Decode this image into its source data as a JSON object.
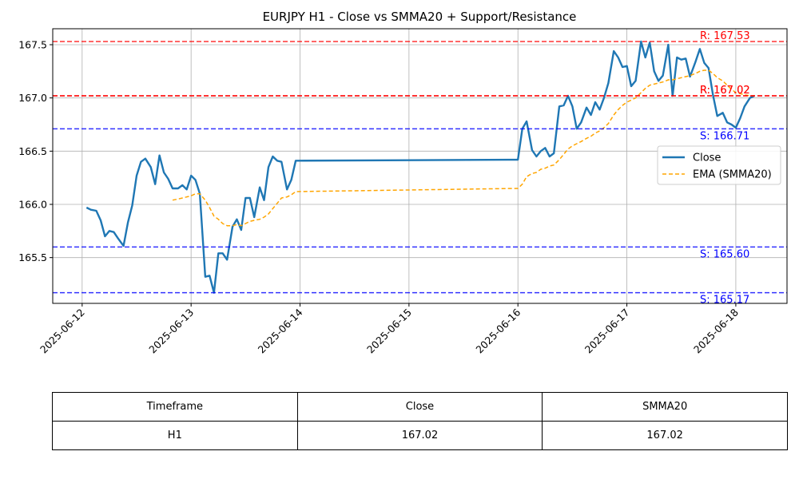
{
  "chart_data": {
    "type": "line",
    "title": "EURJPY H1 - Close vs SMMA20 + Support/Resistance",
    "x_ticks": [
      "2025-06-12",
      "2025-06-13",
      "2025-06-14",
      "2025-06-15",
      "2025-06-16",
      "2025-06-17",
      "2025-06-18"
    ],
    "y_ticks": [
      "165.5",
      "166.0",
      "166.5",
      "167.0",
      "167.5"
    ],
    "ylim": [
      165.07,
      167.65
    ],
    "xlim_days": [
      -0.27,
      6.47
    ],
    "grid": true,
    "legend_position": "center-right",
    "series": [
      {
        "name": "Close",
        "color": "#1f77b4",
        "style": "solid",
        "points": [
          [
            0.04,
            165.97
          ],
          [
            0.08,
            165.95
          ],
          [
            0.13,
            165.94
          ],
          [
            0.17,
            165.85
          ],
          [
            0.21,
            165.7
          ],
          [
            0.25,
            165.75
          ],
          [
            0.29,
            165.74
          ],
          [
            0.33,
            165.68
          ],
          [
            0.38,
            165.61
          ],
          [
            0.42,
            165.83
          ],
          [
            0.46,
            165.99
          ],
          [
            0.5,
            166.27
          ],
          [
            0.54,
            166.4
          ],
          [
            0.58,
            166.43
          ],
          [
            0.63,
            166.35
          ],
          [
            0.67,
            166.19
          ],
          [
            0.71,
            166.46
          ],
          [
            0.75,
            166.3
          ],
          [
            0.79,
            166.24
          ],
          [
            0.83,
            166.15
          ],
          [
            0.88,
            166.15
          ],
          [
            0.92,
            166.18
          ],
          [
            0.96,
            166.14
          ],
          [
            1.0,
            166.27
          ],
          [
            1.04,
            166.23
          ],
          [
            1.08,
            166.1
          ],
          [
            1.13,
            165.32
          ],
          [
            1.17,
            165.33
          ],
          [
            1.21,
            165.17
          ],
          [
            1.25,
            165.54
          ],
          [
            1.29,
            165.54
          ],
          [
            1.33,
            165.48
          ],
          [
            1.38,
            165.79
          ],
          [
            1.42,
            165.86
          ],
          [
            1.46,
            165.76
          ],
          [
            1.5,
            166.06
          ],
          [
            1.54,
            166.06
          ],
          [
            1.58,
            165.88
          ],
          [
            1.63,
            166.16
          ],
          [
            1.67,
            166.04
          ],
          [
            1.71,
            166.35
          ],
          [
            1.75,
            166.45
          ],
          [
            1.79,
            166.41
          ],
          [
            1.83,
            166.4
          ],
          [
            1.88,
            166.14
          ],
          [
            1.92,
            166.23
          ],
          [
            1.96,
            166.41
          ],
          [
            4.0,
            166.42
          ],
          [
            4.04,
            166.71
          ],
          [
            4.08,
            166.78
          ],
          [
            4.13,
            166.51
          ],
          [
            4.17,
            166.45
          ],
          [
            4.21,
            166.5
          ],
          [
            4.25,
            166.53
          ],
          [
            4.29,
            166.45
          ],
          [
            4.33,
            166.48
          ],
          [
            4.38,
            166.92
          ],
          [
            4.42,
            166.93
          ],
          [
            4.46,
            167.02
          ],
          [
            4.5,
            166.92
          ],
          [
            4.54,
            166.71
          ],
          [
            4.58,
            166.77
          ],
          [
            4.63,
            166.91
          ],
          [
            4.67,
            166.84
          ],
          [
            4.71,
            166.96
          ],
          [
            4.75,
            166.89
          ],
          [
            4.79,
            167.0
          ],
          [
            4.83,
            167.14
          ],
          [
            4.88,
            167.44
          ],
          [
            4.92,
            167.38
          ],
          [
            4.96,
            167.29
          ],
          [
            5.0,
            167.3
          ],
          [
            5.04,
            167.11
          ],
          [
            5.08,
            167.16
          ],
          [
            5.13,
            167.53
          ],
          [
            5.17,
            167.38
          ],
          [
            5.21,
            167.52
          ],
          [
            5.25,
            167.25
          ],
          [
            5.29,
            167.16
          ],
          [
            5.33,
            167.21
          ],
          [
            5.38,
            167.5
          ],
          [
            5.42,
            167.02
          ],
          [
            5.46,
            167.38
          ],
          [
            5.5,
            167.36
          ],
          [
            5.54,
            167.37
          ],
          [
            5.58,
            167.2
          ],
          [
            5.63,
            167.34
          ],
          [
            5.67,
            167.46
          ],
          [
            5.71,
            167.33
          ],
          [
            5.75,
            167.28
          ],
          [
            5.79,
            167.03
          ],
          [
            5.83,
            166.83
          ],
          [
            5.88,
            166.86
          ],
          [
            5.92,
            166.77
          ],
          [
            5.96,
            166.75
          ],
          [
            6.0,
            166.72
          ],
          [
            6.04,
            166.81
          ],
          [
            6.08,
            166.92
          ],
          [
            6.13,
            167.0
          ],
          [
            6.17,
            167.02
          ]
        ]
      },
      {
        "name": "EMA (SMMA20)",
        "color": "#ffa500",
        "style": "dashed",
        "points": [
          [
            0.83,
            166.04
          ],
          [
            0.88,
            166.05
          ],
          [
            0.92,
            166.06
          ],
          [
            0.96,
            166.07
          ],
          [
            1.0,
            166.08
          ],
          [
            1.04,
            166.1
          ],
          [
            1.08,
            166.1
          ],
          [
            1.13,
            166.04
          ],
          [
            1.17,
            165.97
          ],
          [
            1.21,
            165.89
          ],
          [
            1.25,
            165.86
          ],
          [
            1.29,
            165.82
          ],
          [
            1.33,
            165.8
          ],
          [
            1.38,
            165.8
          ],
          [
            1.42,
            165.81
          ],
          [
            1.46,
            165.8
          ],
          [
            1.5,
            165.82
          ],
          [
            1.54,
            165.84
          ],
          [
            1.58,
            165.85
          ],
          [
            1.63,
            165.86
          ],
          [
            1.67,
            165.88
          ],
          [
            1.71,
            165.91
          ],
          [
            1.75,
            165.96
          ],
          [
            1.79,
            166.01
          ],
          [
            1.83,
            166.06
          ],
          [
            1.88,
            166.07
          ],
          [
            1.92,
            166.09
          ],
          [
            1.96,
            166.12
          ],
          [
            4.0,
            166.15
          ],
          [
            4.04,
            166.19
          ],
          [
            4.08,
            166.26
          ],
          [
            4.13,
            166.29
          ],
          [
            4.17,
            166.3
          ],
          [
            4.21,
            166.33
          ],
          [
            4.25,
            166.34
          ],
          [
            4.29,
            166.36
          ],
          [
            4.33,
            166.37
          ],
          [
            4.38,
            166.42
          ],
          [
            4.42,
            166.47
          ],
          [
            4.46,
            166.52
          ],
          [
            4.5,
            166.55
          ],
          [
            4.54,
            166.57
          ],
          [
            4.58,
            166.59
          ],
          [
            4.63,
            166.62
          ],
          [
            4.67,
            166.64
          ],
          [
            4.71,
            166.67
          ],
          [
            4.75,
            166.69
          ],
          [
            4.79,
            166.72
          ],
          [
            4.83,
            166.76
          ],
          [
            4.88,
            166.84
          ],
          [
            4.92,
            166.89
          ],
          [
            4.96,
            166.93
          ],
          [
            5.0,
            166.96
          ],
          [
            5.04,
            166.98
          ],
          [
            5.08,
            167.0
          ],
          [
            5.13,
            167.05
          ],
          [
            5.17,
            167.09
          ],
          [
            5.21,
            167.12
          ],
          [
            5.25,
            167.13
          ],
          [
            5.29,
            167.14
          ],
          [
            5.33,
            167.15
          ],
          [
            5.38,
            167.17
          ],
          [
            5.42,
            167.17
          ],
          [
            5.46,
            167.18
          ],
          [
            5.5,
            167.19
          ],
          [
            5.54,
            167.2
          ],
          [
            5.58,
            167.21
          ],
          [
            5.63,
            167.23
          ],
          [
            5.67,
            167.25
          ],
          [
            5.71,
            167.26
          ],
          [
            5.75,
            167.26
          ],
          [
            5.79,
            167.23
          ],
          [
            5.83,
            167.19
          ],
          [
            5.88,
            167.16
          ],
          [
            5.92,
            167.12
          ],
          [
            5.96,
            167.08
          ],
          [
            6.0,
            167.05
          ],
          [
            6.04,
            167.04
          ],
          [
            6.08,
            167.03
          ],
          [
            6.13,
            167.02
          ],
          [
            6.17,
            167.02
          ]
        ]
      }
    ],
    "levels": [
      {
        "kind": "resistance",
        "value": 167.53,
        "label": "R: 167.53",
        "color": "#ff0000"
      },
      {
        "kind": "resistance",
        "value": 167.02,
        "label": "R: 167.02",
        "color": "#ff0000"
      },
      {
        "kind": "resistance",
        "value": 167.02,
        "label": "R: 167.02",
        "color": "#ff0000"
      },
      {
        "kind": "support",
        "value": 166.71,
        "label": "S: 166.71",
        "color": "#0000ff"
      },
      {
        "kind": "support",
        "value": 165.6,
        "label": "S: 165.60",
        "color": "#0000ff"
      },
      {
        "kind": "support",
        "value": 165.17,
        "label": "S: 165.17",
        "color": "#0000ff"
      }
    ]
  },
  "table": {
    "headers": [
      "Timeframe",
      "Close",
      "SMMA20"
    ],
    "rows": [
      [
        "H1",
        "167.02",
        "167.02"
      ]
    ]
  }
}
